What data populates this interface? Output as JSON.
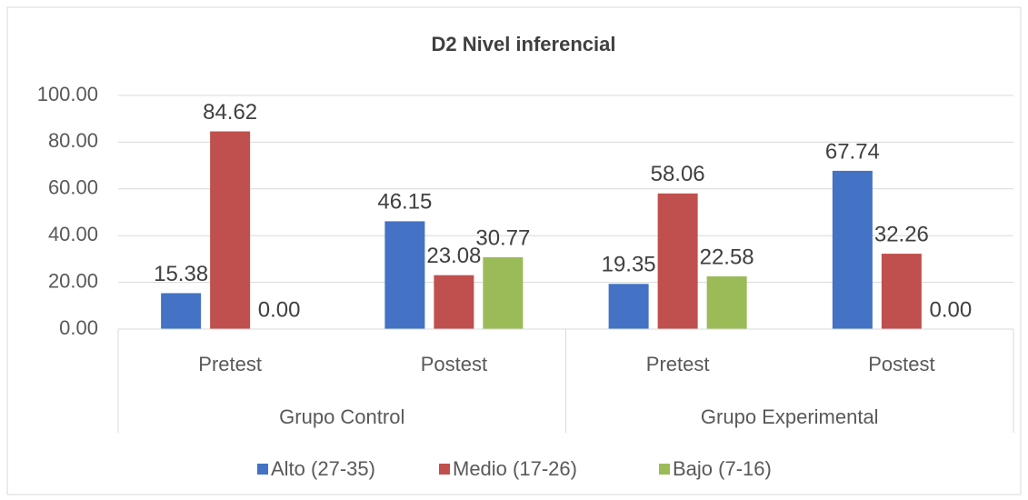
{
  "chart_data": {
    "type": "bar",
    "title": "D2 Nivel inferencial",
    "categories": [
      "Pretest",
      "Postest",
      "Pretest",
      "Postest"
    ],
    "groups": [
      "Grupo Control",
      "Grupo Experimental"
    ],
    "series": [
      {
        "name": "Alto (27-35)",
        "color": "#4472c4",
        "values": [
          15.38,
          46.15,
          19.35,
          67.74
        ],
        "value_labels": [
          "15.38",
          "46.15",
          "19.35",
          "67.74"
        ]
      },
      {
        "name": "Medio (17-26)",
        "color": "#c0504d",
        "values": [
          84.62,
          23.08,
          58.06,
          32.26
        ],
        "value_labels": [
          "84.62",
          "23.08",
          "58.06",
          "32.26"
        ]
      },
      {
        "name": "Bajo (7-16)",
        "color": "#9bbb59",
        "values": [
          0,
          30.77,
          22.58,
          0
        ],
        "value_labels": [
          "0.00",
          "30.77",
          "22.58",
          "0.00"
        ]
      }
    ],
    "ylim": [
      0,
      100
    ],
    "yticks": [
      {
        "value": 0,
        "label": "0.00"
      },
      {
        "value": 20,
        "label": "20.00"
      },
      {
        "value": 40,
        "label": "40.00"
      },
      {
        "value": 60,
        "label": "60.00"
      },
      {
        "value": 80,
        "label": "80.00"
      },
      {
        "value": 100,
        "label": "100.00"
      }
    ],
    "grid": true,
    "legend": "bottom"
  }
}
